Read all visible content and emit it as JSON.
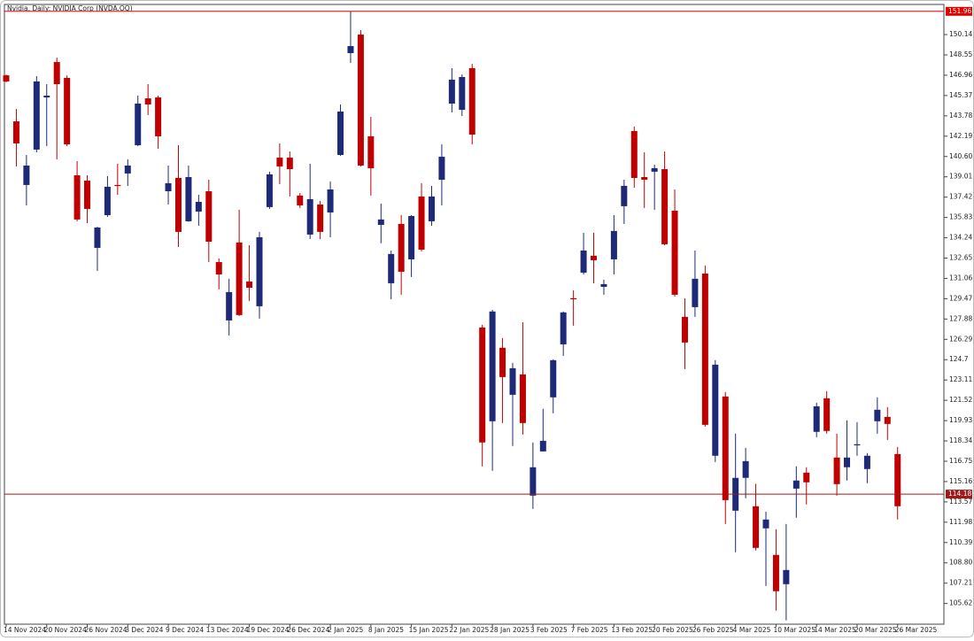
{
  "chart_data": {
    "type": "candlestick",
    "title": "Nvidia, Daily: NVIDIA Corp (NVDA.OQ)",
    "categories": [
      "14 Nov 2024",
      null,
      null,
      null,
      "20 Nov 2024",
      null,
      null,
      null,
      "26 Nov 2024",
      null,
      null,
      null,
      "3 Dec 2024",
      null,
      null,
      null,
      "9 Dec 2024",
      null,
      null,
      null,
      "13 Dec 2024",
      null,
      null,
      null,
      "19 Dec 2024",
      null,
      null,
      null,
      "26 Dec 2024",
      null,
      null,
      null,
      "2 Jan 2025",
      null,
      null,
      null,
      "8 Jan 2025",
      null,
      null,
      null,
      "15 Jan 2025",
      null,
      null,
      null,
      "22 Jan 2025",
      null,
      null,
      null,
      "28 Jan 2025",
      null,
      null,
      null,
      "3 Feb 2025",
      null,
      null,
      null,
      "7 Feb 2025",
      null,
      null,
      null,
      "13 Feb 2025",
      null,
      null,
      null,
      "20 Feb 2025",
      null,
      null,
      null,
      "26 Feb 2025",
      null,
      null,
      null,
      "4 Mar 2025",
      null,
      null,
      null,
      "10 Mar 2025",
      null,
      null,
      null,
      "14 Mar 2025",
      null,
      null,
      null,
      "20 Mar 2025",
      null,
      null,
      null,
      "26 Mar 2025"
    ],
    "open": [
      146.95,
      143.35,
      138.37,
      141.14,
      145.22,
      147.99,
      146.75,
      139.13,
      138.71,
      133.45,
      136.01,
      138.37,
      139.27,
      141.48,
      145.15,
      145.22,
      137.88,
      138.92,
      135.53,
      136.29,
      137.88,
      132.34,
      127.77,
      133.87,
      130.82,
      128.88,
      136.64,
      140.51,
      140.51,
      137.54,
      134.49,
      136.84,
      136.22,
      140.72,
      148.69,
      150.14,
      142.18,
      135.25,
      130.68,
      135.32,
      132.55,
      137.47,
      135.53,
      138.78,
      144.74,
      144.25,
      147.51,
      127.22,
      119.88,
      125.63,
      121.95,
      123.55,
      114.06,
      117.52,
      121.75,
      125.9,
      129.51,
      131.51,
      132.83,
      130.4,
      132.55,
      136.71,
      142.59,
      138.99,
      139.41,
      139.61,
      136.36,
      128.05,
      128.81,
      131.44,
      117.18,
      121.82,
      112.88,
      115.45,
      113.23,
      111.5,
      109.42,
      107.13,
      114.61,
      115.86,
      119.05,
      121.68,
      117.04,
      116.28,
      118.0,
      116.14,
      119.88,
      120.22,
      117.31
    ],
    "high": [
      147.0,
      144.32,
      140.72,
      146.89,
      146.26,
      148.34,
      146.95,
      140.24,
      139.13,
      135.1,
      139.06,
      140.03,
      140.38,
      145.36,
      146.26,
      145.36,
      139.89,
      141.48,
      139.89,
      137.6,
      138.78,
      132.62,
      131.03,
      136.43,
      133.66,
      134.7,
      139.41,
      141.62,
      140.99,
      137.74,
      140.03,
      137.12,
      138.65,
      144.67,
      151.94,
      150.49,
      143.7,
      136.91,
      133.24,
      136.01,
      136.01,
      138.51,
      138.3,
      141.55,
      147.51,
      147.02,
      147.85,
      127.43,
      128.6,
      126.39,
      124.45,
      127.63,
      118.22,
      120.85,
      124.73,
      128.47,
      130.13,
      134.63,
      134.63,
      130.96,
      136.01,
      138.78,
      142.94,
      140.93,
      139.96,
      140.99,
      138.02,
      129.5,
      133.24,
      132.07,
      124.66,
      122.16,
      118.91,
      117.8,
      114.98,
      112.81,
      111.43,
      111.84,
      116.35,
      116.28,
      121.33,
      122.23,
      118.91,
      119.95,
      119.81,
      117.39,
      121.75,
      120.99,
      117.87
    ],
    "low": [
      146.4,
      139.82,
      136.77,
      140.93,
      141.41,
      140.38,
      141.41,
      135.53,
      135.39,
      131.65,
      135.87,
      137.6,
      138.3,
      141.41,
      143.84,
      141.21,
      136.84,
      133.52,
      135.5,
      135.18,
      132.34,
      130.2,
      126.59,
      128.12,
      129.3,
      127.91,
      136.5,
      138.44,
      137.47,
      136.57,
      134.14,
      134.14,
      134.28,
      140.65,
      147.92,
      139.82,
      137.54,
      133.8,
      129.43,
      129.78,
      131.17,
      133.17,
      135.18,
      136.77,
      144.05,
      143.77,
      141.55,
      116.35,
      116.0,
      119.74,
      117.94,
      118.84,
      113.02,
      117.52,
      120.5,
      125.0,
      127.36,
      131.37,
      130.68,
      129.78,
      131.37,
      135.32,
      138.16,
      136.57,
      136.43,
      133.66,
      129.64,
      123.96,
      128.05,
      119.46,
      116.69,
      111.84,
      109.63,
      113.85,
      109.77,
      106.99,
      105.06,
      104.3,
      112.33,
      113.37,
      118.63,
      118.91,
      114.06,
      115.24,
      117.18,
      115.03,
      118.91,
      118.42,
      112.19
    ],
    "close": [
      146.47,
      141.62,
      139.89,
      146.47,
      145.36,
      146.26,
      141.55,
      135.67,
      136.5,
      135.04,
      138.23,
      138.3,
      139.89,
      144.74,
      144.67,
      142.18,
      138.51,
      134.7,
      138.99,
      137.05,
      133.93,
      131.37,
      129.99,
      128.19,
      130.33,
      134.28,
      139.2,
      139.82,
      139.61,
      136.77,
      137.26,
      134.7,
      138.02,
      144.12,
      149.24,
      139.89,
      139.68,
      135.67,
      132.97,
      131.58,
      135.94,
      133.31,
      137.47,
      140.58,
      146.61,
      146.82,
      142.31,
      118.22,
      128.47,
      123.34,
      124.03,
      119.74,
      116.28,
      118.35,
      124.66,
      128.4,
      129.45,
      133.24,
      132.48,
      130.61,
      134.77,
      138.3,
      138.92,
      138.78,
      139.68,
      133.73,
      129.78,
      126.04,
      131.03,
      119.6,
      124.31,
      113.71,
      115.45,
      116.76,
      109.97,
      112.19,
      106.58,
      108.24,
      115.24,
      115.1,
      121.05,
      119.12,
      114.96,
      117.04,
      118.08,
      117.18,
      120.78,
      119.67,
      113.23
    ],
    "up_color": "#1e2a78",
    "down_color": "#c00000",
    "ylim": [
      104.0,
      152.5
    ],
    "yticks": [
      150.14,
      148.55,
      146.96,
      145.37,
      143.78,
      142.19,
      {
        "value": 140.6,
        "label": "140.60"
      },
      139.01,
      137.42,
      135.83,
      134.24,
      132.65,
      131.06,
      129.47,
      127.88,
      126.29,
      124.7,
      123.11,
      121.52,
      119.93,
      118.34,
      116.75,
      115.16,
      113.57,
      111.98,
      110.39,
      {
        "value": 108.8,
        "label": "108.80"
      },
      107.21,
      105.62
    ],
    "levels": [
      151.96,
      114.18
    ],
    "level_colors": [
      "#e00000",
      "#a01818"
    ]
  }
}
